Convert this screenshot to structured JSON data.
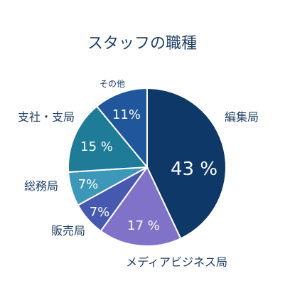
{
  "chart_data": {
    "type": "pie",
    "title": "スタッフの職種",
    "start_angle_deg": 0,
    "direction": "clockwise",
    "value_unit": "%",
    "slices": [
      {
        "label": "編集局",
        "value": 43,
        "value_label": "43 %",
        "color": "#0e3868"
      },
      {
        "label": "メディアビジネス局",
        "value": 17,
        "value_label": "17 %",
        "color": "#8072c9"
      },
      {
        "label": "販売局",
        "value": 7,
        "value_label": "7%",
        "color": "#4658b0"
      },
      {
        "label": "総務局",
        "value": 7,
        "value_label": "7%",
        "color": "#3c97b9"
      },
      {
        "label": "支社・支局",
        "value": 15,
        "value_label": "15 %",
        "color": "#1f7c98"
      },
      {
        "label": "その他",
        "value": 11,
        "value_label": "11%",
        "color": "#20579c"
      }
    ],
    "text_color": "#1f3f66",
    "slice_border_color": "#ffffff"
  }
}
